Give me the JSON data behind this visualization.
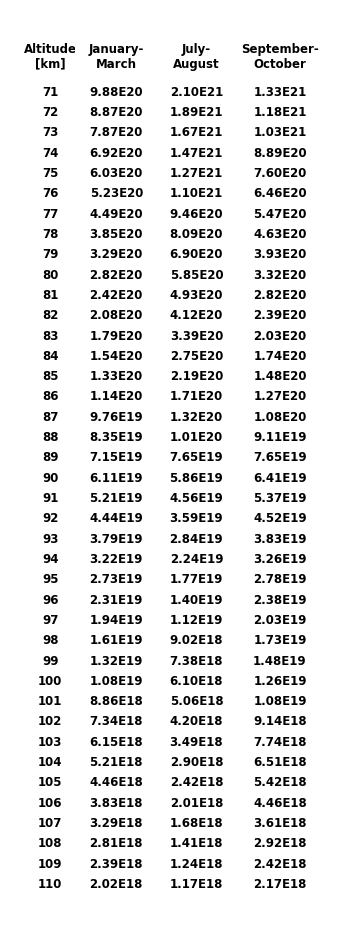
{
  "headers": [
    "Altitude\n[km]",
    "January-\nMarch",
    "July-\nAugust",
    "September-\nOctober"
  ],
  "altitudes": [
    71,
    72,
    73,
    74,
    75,
    76,
    77,
    78,
    79,
    80,
    81,
    82,
    83,
    84,
    85,
    86,
    87,
    88,
    89,
    90,
    91,
    92,
    93,
    94,
    95,
    96,
    97,
    98,
    99,
    100,
    101,
    102,
    103,
    104,
    105,
    106,
    107,
    108,
    109,
    110
  ],
  "jan_march": [
    "9.88E20",
    "8.87E20",
    "7.87E20",
    "6.92E20",
    "6.03E20",
    "5.23E20",
    "4.49E20",
    "3.85E20",
    "3.29E20",
    "2.82E20",
    "2.42E20",
    "2.08E20",
    "1.79E20",
    "1.54E20",
    "1.33E20",
    "1.14E20",
    "9.76E19",
    "8.35E19",
    "7.15E19",
    "6.11E19",
    "5.21E19",
    "4.44E19",
    "3.79E19",
    "3.22E19",
    "2.73E19",
    "2.31E19",
    "1.94E19",
    "1.61E19",
    "1.32E19",
    "1.08E19",
    "8.86E18",
    "7.34E18",
    "6.15E18",
    "5.21E18",
    "4.46E18",
    "3.83E18",
    "3.29E18",
    "2.81E18",
    "2.39E18",
    "2.02E18"
  ],
  "jul_aug": [
    "2.10E21",
    "1.89E21",
    "1.67E21",
    "1.47E21",
    "1.27E21",
    "1.10E21",
    "9.46E20",
    "8.09E20",
    "6.90E20",
    "5.85E20",
    "4.93E20",
    "4.12E20",
    "3.39E20",
    "2.75E20",
    "2.19E20",
    "1.71E20",
    "1.32E20",
    "1.01E20",
    "7.65E19",
    "5.86E19",
    "4.56E19",
    "3.59E19",
    "2.84E19",
    "2.24E19",
    "1.77E19",
    "1.40E19",
    "1.12E19",
    "9.02E18",
    "7.38E18",
    "6.10E18",
    "5.06E18",
    "4.20E18",
    "3.49E18",
    "2.90E18",
    "2.42E18",
    "2.01E18",
    "1.68E18",
    "1.41E18",
    "1.24E18",
    "1.17E18"
  ],
  "sep_oct": [
    "1.33E21",
    "1.18E21",
    "1.03E21",
    "8.89E20",
    "7.60E20",
    "6.46E20",
    "5.47E20",
    "4.63E20",
    "3.93E20",
    "3.32E20",
    "2.82E20",
    "2.39E20",
    "2.03E20",
    "1.74E20",
    "1.48E20",
    "1.27E20",
    "1.08E20",
    "9.11E19",
    "7.65E19",
    "6.41E19",
    "5.37E19",
    "4.52E19",
    "3.83E19",
    "3.26E19",
    "2.78E19",
    "2.38E19",
    "2.03E19",
    "1.73E19",
    "1.48E19",
    "1.26E19",
    "1.08E19",
    "9.14E18",
    "7.74E18",
    "6.51E18",
    "5.42E18",
    "4.46E18",
    "3.61E18",
    "2.92E18",
    "2.42E18",
    "2.17E18"
  ],
  "fig_width": 3.51,
  "fig_height": 9.26,
  "dpi": 100,
  "font_size": 8.5,
  "header_font_size": 8.5
}
